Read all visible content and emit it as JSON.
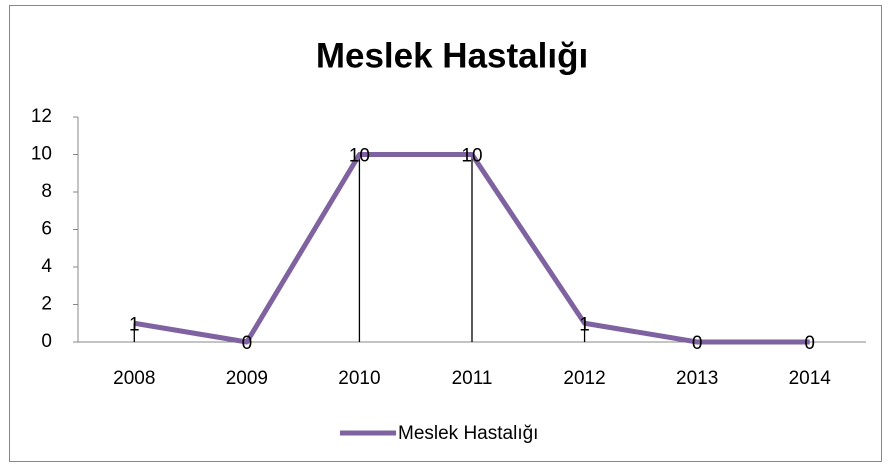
{
  "chart_data": {
    "type": "line",
    "title": "Meslek Hastalığı",
    "categories": [
      "2008",
      "2009",
      "2010",
      "2011",
      "2012",
      "2013",
      "2014"
    ],
    "series": [
      {
        "name": "Meslek Hastalığı",
        "color": "#7f63a1",
        "values": [
          1,
          0,
          10,
          10,
          1,
          0,
          0
        ]
      }
    ],
    "ylim": [
      0,
      12
    ],
    "yticks": [
      0,
      2,
      4,
      6,
      8,
      10,
      12
    ],
    "data_labels": true,
    "drop_lines": true,
    "legend": "bottom"
  }
}
